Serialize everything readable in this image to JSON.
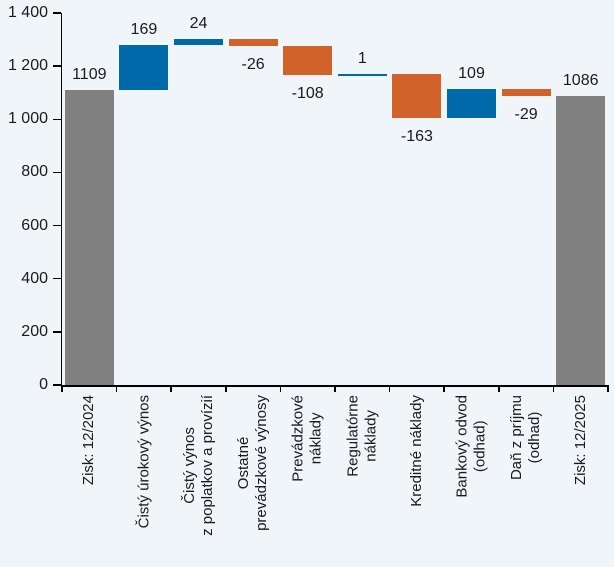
{
  "page": {
    "background": "#f0f5fa"
  },
  "chart_data": {
    "type": "waterfall",
    "title": "",
    "y_axis": {
      "min": 0,
      "max": 1400,
      "step": 200,
      "tick_labels": [
        "0",
        "200",
        "400",
        "600",
        "800",
        "1 000",
        "1 200",
        "1 400"
      ]
    },
    "categories": [
      "Zisk: 12/2024",
      "Čistý úrokový výnos",
      "Čistý výnos z poplatkov a provízií",
      "Ostatné prevádzkové výnosy",
      "Prevádzkové náklady",
      "Regulatórne náklady",
      "Kreditné náklady",
      "Bankový odvod (odhad)",
      "Daň z príjmu (odhad)",
      "Zisk: 12/2025"
    ],
    "category_label_lines": [
      [
        "Zisk: 12/2024"
      ],
      [
        "Čistý úrokový výnos"
      ],
      [
        "Čistý výnos",
        "z poplatkov a provízií"
      ],
      [
        "Ostatné",
        "prevádzkové výnosy"
      ],
      [
        "Prevádzkové",
        "náklady"
      ],
      [
        "Regulatórne",
        "náklady"
      ],
      [
        "Kreditné náklady"
      ],
      [
        "Bankový odvod",
        "(odhad)"
      ],
      [
        "Daň z príjmu",
        "(odhad)"
      ],
      [
        "Zisk: 12/2025"
      ]
    ],
    "values": [
      1109,
      169,
      24,
      -26,
      -108,
      1,
      -163,
      109,
      -29,
      1086
    ],
    "kinds": [
      "total",
      "delta",
      "delta",
      "delta",
      "delta",
      "delta",
      "delta",
      "delta",
      "delta",
      "total"
    ],
    "data_labels": [
      "1109",
      "169",
      "24",
      "-26",
      "-108",
      "1",
      "-163",
      "109",
      "-29",
      "1086"
    ],
    "colors": {
      "increase": "#0069aa",
      "decrease": "#d1622a",
      "total": "#808080",
      "axis": "#000000",
      "text": "#1a1a1a",
      "background": "#f0f5fa"
    },
    "grid": false,
    "legend": null
  }
}
